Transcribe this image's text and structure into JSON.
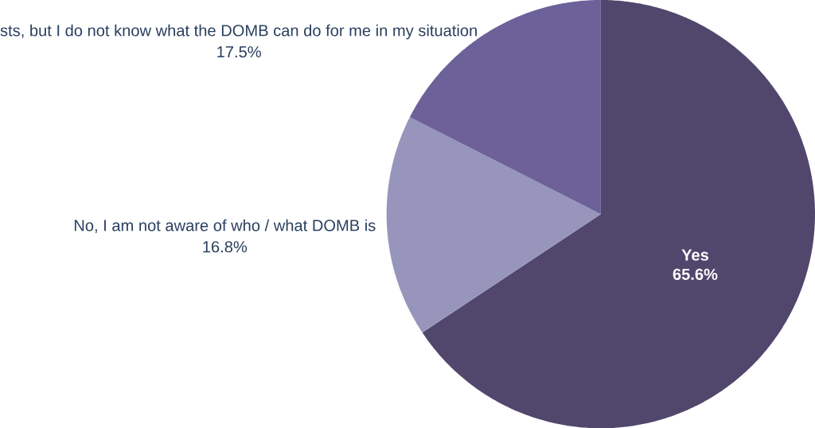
{
  "chart_data": {
    "type": "pie",
    "categories": [
      "Yes",
      "No, I am not aware of who / what DOMB is",
      "sts, but I do not  know what the DOMB can do for me in my situation"
    ],
    "values": [
      65.6,
      16.8,
      17.5
    ],
    "value_labels": [
      "65.6%",
      "16.8%",
      "17.5%"
    ],
    "colors": [
      "#51476d",
      "#9795bb",
      "#6c6199"
    ]
  }
}
